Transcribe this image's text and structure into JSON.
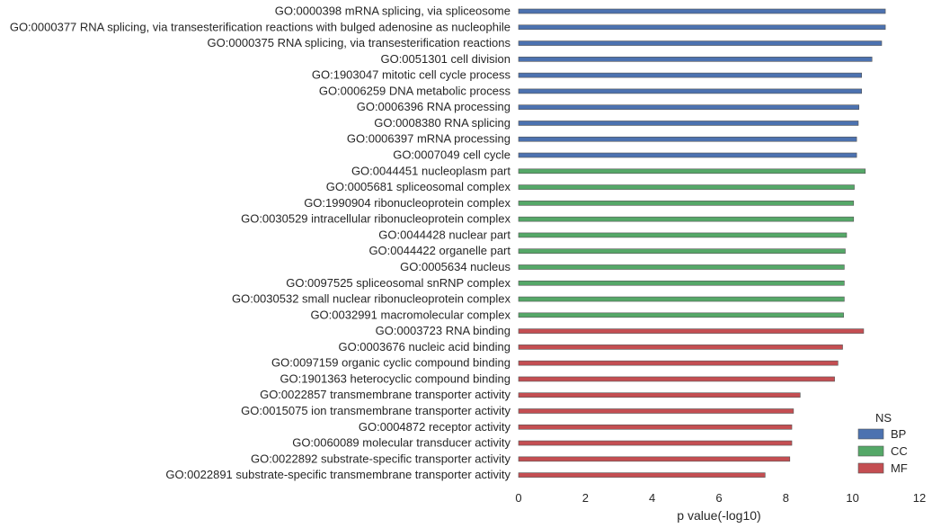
{
  "chart_data": {
    "type": "bar",
    "orientation": "horizontal",
    "xlabel": "p value(-log10)",
    "ylabel": "",
    "title": "",
    "xlim": [
      0,
      12
    ],
    "xticks": [
      "0",
      "2",
      "4",
      "6",
      "8",
      "10",
      "12"
    ],
    "grid": false,
    "legend": {
      "title": "NS",
      "placement": "bottom-right",
      "entries": [
        "BP",
        "CC",
        "MF"
      ]
    },
    "colors": {
      "BP": "#4c72b0",
      "CC": "#55a868",
      "MF": "#c44e52"
    },
    "series": [
      {
        "name": "BP",
        "categories": [
          "GO:0000398 mRNA splicing, via spliceosome",
          "GO:0000377 RNA splicing, via transesterification reactions with bulged adenosine as nucleophile",
          "GO:0000375 RNA splicing, via transesterification reactions",
          "GO:0051301 cell division",
          "GO:1903047 mitotic cell cycle process",
          "GO:0006259 DNA metabolic process",
          "GO:0006396 RNA processing",
          "GO:0008380 RNA splicing",
          "GO:0006397 mRNA processing",
          "GO:0007049 cell cycle"
        ],
        "values": [
          10.98,
          10.98,
          10.87,
          10.58,
          10.27,
          10.27,
          10.19,
          10.17,
          10.12,
          10.12
        ]
      },
      {
        "name": "CC",
        "categories": [
          "GO:0044451 nucleoplasm part",
          "GO:0005681 spliceosomal complex",
          "GO:1990904 ribonucleoprotein complex",
          "GO:0030529 intracellular ribonucleoprotein complex",
          "GO:0044428 nuclear part",
          "GO:0044422 organelle part",
          "GO:0005634 nucleus",
          "GO:0097525 spliceosomal snRNP complex",
          "GO:0030532 small nuclear ribonucleoprotein complex",
          "GO:0032991 macromolecular complex"
        ],
        "values": [
          10.38,
          10.05,
          10.03,
          10.03,
          9.82,
          9.78,
          9.75,
          9.75,
          9.75,
          9.73
        ]
      },
      {
        "name": "MF",
        "categories": [
          "GO:0003723 RNA binding",
          "GO:0003676 nucleic acid binding",
          "GO:0097159 organic cyclic compound binding",
          "GO:1901363 heterocyclic compound binding",
          "GO:0022857 transmembrane transporter activity",
          "GO:0015075 ion transmembrane transporter activity",
          "GO:0004872 receptor activity",
          "GO:0060089 molecular transducer activity",
          "GO:0022892 substrate-specific transporter activity",
          "GO:0022891 substrate-specific transmembrane transporter activity"
        ],
        "values": [
          10.33,
          9.7,
          9.56,
          9.46,
          8.43,
          8.23,
          8.18,
          8.18,
          8.12,
          7.38
        ]
      }
    ]
  }
}
